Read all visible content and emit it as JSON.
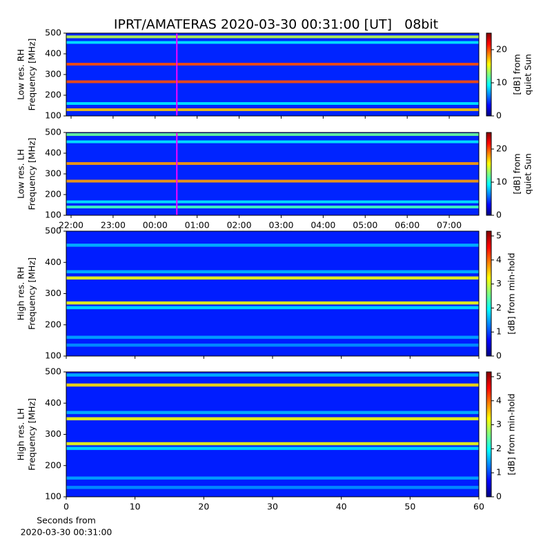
{
  "chart_data": [
    {
      "type": "spectrogram",
      "title": "IPRT/AMATERAS 2020-03-30 00:31:00 [UT]   08bit",
      "ylabel": [
        "Low res. RH",
        "Frequency [MHz]"
      ],
      "xlim": [
        21.885,
        31.705
      ],
      "xticks": [
        {
          "value": 22,
          "label": "22:00"
        },
        {
          "value": 23,
          "label": "23:00"
        },
        {
          "value": 24,
          "label": "00:00"
        },
        {
          "value": 25,
          "label": "01:00"
        },
        {
          "value": 26,
          "label": "02:00"
        },
        {
          "value": 27,
          "label": "03:00"
        },
        {
          "value": 28,
          "label": "04:00"
        },
        {
          "value": 29,
          "label": "05:00"
        },
        {
          "value": 30,
          "label": "06:00"
        },
        {
          "value": 31,
          "label": "07:00"
        }
      ],
      "xtick_labels": false,
      "ylim": [
        100,
        500
      ],
      "yticks": [
        100,
        200,
        300,
        400,
        500
      ],
      "marker": 24.517,
      "marker_color": "#ff00ff",
      "clim": [
        0,
        25
      ],
      "cticks": [
        0,
        10,
        20
      ],
      "clabel": [
        "[dB] from",
        "quiet Sun"
      ],
      "background": 4,
      "bands": [
        {
          "freq": 482,
          "value": 14
        },
        {
          "freq": 455,
          "value": 9
        },
        {
          "freq": 350,
          "value": 20
        },
        {
          "freq": 265,
          "value": 20
        },
        {
          "freq": 160,
          "value": 9
        },
        {
          "freq": 130,
          "value": 17
        }
      ]
    },
    {
      "type": "spectrogram",
      "ylabel": [
        "Low res. LH",
        "Frequency [MHz]"
      ],
      "xlim": [
        21.885,
        31.705
      ],
      "xticks": [
        {
          "value": 22,
          "label": "22:00"
        },
        {
          "value": 23,
          "label": "23:00"
        },
        {
          "value": 24,
          "label": "00:00"
        },
        {
          "value": 25,
          "label": "01:00"
        },
        {
          "value": 26,
          "label": "02:00"
        },
        {
          "value": 27,
          "label": "03:00"
        },
        {
          "value": 28,
          "label": "04:00"
        },
        {
          "value": 29,
          "label": "05:00"
        },
        {
          "value": 30,
          "label": "06:00"
        },
        {
          "value": 31,
          "label": "07:00"
        }
      ],
      "xtick_labels": true,
      "ylim": [
        100,
        500
      ],
      "yticks": [
        100,
        200,
        300,
        400,
        500
      ],
      "marker": 24.517,
      "marker_color": "#ff00ff",
      "clim": [
        0,
        25
      ],
      "cticks": [
        0,
        10,
        20
      ],
      "clabel": [
        "[dB] from",
        "quiet Sun"
      ],
      "background": 4,
      "bands": [
        {
          "freq": 490,
          "value": 12
        },
        {
          "freq": 455,
          "value": 9
        },
        {
          "freq": 350,
          "value": 18
        },
        {
          "freq": 265,
          "value": 18
        },
        {
          "freq": 165,
          "value": 9
        },
        {
          "freq": 140,
          "value": 11
        }
      ]
    },
    {
      "type": "spectrogram",
      "ylabel": [
        "High res. RH",
        "Frequency [MHz]"
      ],
      "xlim": [
        0,
        60
      ],
      "xticks": [
        0,
        10,
        20,
        30,
        40,
        50,
        60
      ],
      "xtick_labels": false,
      "ylim": [
        100,
        500
      ],
      "yticks": [
        100,
        200,
        300,
        400,
        500
      ],
      "clim": [
        0,
        5.2
      ],
      "cticks": [
        0,
        1,
        2,
        3,
        4,
        5
      ],
      "clabel": [
        "[dB] from min-hold"
      ],
      "background": 0.8,
      "bands": [
        {
          "freq": 455,
          "value": 1.6
        },
        {
          "freq": 370,
          "value": 1.6
        },
        {
          "freq": 350,
          "value": 3.2
        },
        {
          "freq": 270,
          "value": 3.2
        },
        {
          "freq": 255,
          "value": 1.8
        },
        {
          "freq": 160,
          "value": 1.5
        },
        {
          "freq": 135,
          "value": 1.4
        }
      ]
    },
    {
      "type": "spectrogram",
      "ylabel": [
        "High res. LH",
        "Frequency [MHz]"
      ],
      "xlim": [
        0,
        60
      ],
      "xticks": [
        0,
        10,
        20,
        30,
        40,
        50,
        60
      ],
      "xtick_labels": true,
      "xlabel": [
        "Seconds from",
        "2020-03-30 00:31:00"
      ],
      "ylim": [
        100,
        500
      ],
      "yticks": [
        100,
        200,
        300,
        400,
        500
      ],
      "clim": [
        0,
        5.2
      ],
      "cticks": [
        0,
        1,
        2,
        3,
        4,
        5
      ],
      "clabel": [
        "[dB] from min-hold"
      ],
      "background": 0.8,
      "bands": [
        {
          "freq": 490,
          "value": 1.6
        },
        {
          "freq": 458,
          "value": 3.4
        },
        {
          "freq": 370,
          "value": 1.6
        },
        {
          "freq": 350,
          "value": 3.2
        },
        {
          "freq": 270,
          "value": 3.2
        },
        {
          "freq": 255,
          "value": 1.8
        },
        {
          "freq": 160,
          "value": 1.5
        },
        {
          "freq": 130,
          "value": 1.4
        }
      ]
    }
  ]
}
